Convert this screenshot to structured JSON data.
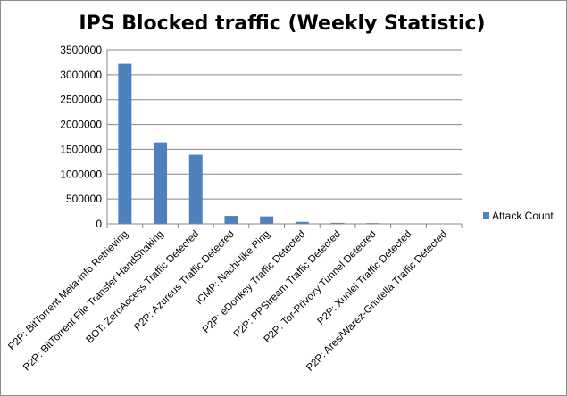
{
  "chart_data": {
    "type": "bar",
    "title": "IPS Blocked traffic (Weekly Statistic)",
    "xlabel": "",
    "ylabel": "",
    "ylim": [
      0,
      3500000
    ],
    "yticks": [
      0,
      500000,
      1000000,
      1500000,
      2000000,
      2500000,
      3000000,
      3500000
    ],
    "grid": "horizontal",
    "legend_position": "right",
    "categories": [
      "P2P: BitTorrent Meta-Info Retrieving",
      "P2P: BitTorrent File Transfer HandShaking",
      "BOT: ZeroAccess Traffic Detected",
      "P2P: Azureus Traffic Detected",
      "ICMP: Nachi-like Ping",
      "P2P: eDonkey Traffic Detected",
      "P2P: PPStream Traffic Detected",
      "P2P: Tor-Privoxy Tunnel Detected",
      "P2P: Xunlei Traffic Detected",
      "P2P: Ares/Warez-Gnutella Traffic Detected"
    ],
    "series": [
      {
        "name": "Attack Count",
        "color": "#4f81bd",
        "values": [
          3220000,
          1640000,
          1390000,
          160000,
          150000,
          40000,
          20000,
          15000,
          4000,
          2000
        ]
      }
    ]
  }
}
